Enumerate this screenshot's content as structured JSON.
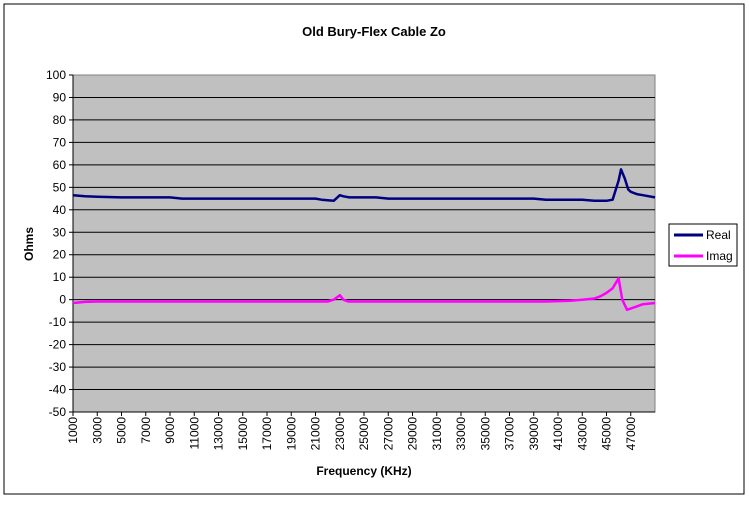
{
  "chart_data": {
    "type": "line",
    "title": "Old Bury-Flex Cable Zo",
    "xlabel": "Frequency (KHz)",
    "ylabel": "Ohms",
    "ylim": [
      -50,
      100
    ],
    "ytick_step": 10,
    "xlim": [
      1000,
      49000
    ],
    "x_tick_labels": [
      "1000",
      "3000",
      "5000",
      "7000",
      "9000",
      "11000",
      "13000",
      "15000",
      "17000",
      "19000",
      "21000",
      "23000",
      "25000",
      "27000",
      "29000",
      "31000",
      "33000",
      "35000",
      "37000",
      "39000",
      "41000",
      "43000",
      "45000",
      "47000"
    ],
    "grid": true,
    "legend_position": "right",
    "series": [
      {
        "name": "Real",
        "color": "#000080",
        "x": [
          1000,
          2000,
          3000,
          5000,
          9000,
          10000,
          13000,
          17000,
          21000,
          21500,
          22500,
          23000,
          23300,
          23800,
          24500,
          26000,
          27000,
          30000,
          35000,
          39000,
          40000,
          43000,
          44000,
          45000,
          45500,
          46000,
          46200,
          46500,
          46800,
          47000,
          47500,
          48000,
          49000
        ],
        "y": [
          46.5,
          46,
          45.8,
          45.5,
          45.5,
          45,
          45,
          45,
          45,
          44.5,
          44,
          46.5,
          46,
          45.5,
          45.5,
          45.5,
          45,
          45,
          45,
          45,
          44.5,
          44.5,
          44,
          44,
          44.5,
          53,
          58,
          54,
          49,
          48,
          47,
          46.5,
          45.5
        ]
      },
      {
        "name": "Imag",
        "color": "#ff00ff",
        "x": [
          1000,
          2000,
          3000,
          10000,
          20000,
          22000,
          22500,
          23000,
          23300,
          23700,
          25000,
          30000,
          40000,
          42000,
          43000,
          44000,
          44500,
          45000,
          45500,
          46000,
          46300,
          46700,
          47500,
          48000,
          49000
        ],
        "y": [
          -1.5,
          -1,
          -0.8,
          -0.8,
          -0.8,
          -0.8,
          0,
          2,
          0,
          -0.8,
          -0.8,
          -0.8,
          -0.8,
          -0.5,
          0,
          0.5,
          1.5,
          3,
          5,
          9.5,
          0,
          -4.5,
          -3,
          -2,
          -1.5
        ]
      }
    ]
  }
}
